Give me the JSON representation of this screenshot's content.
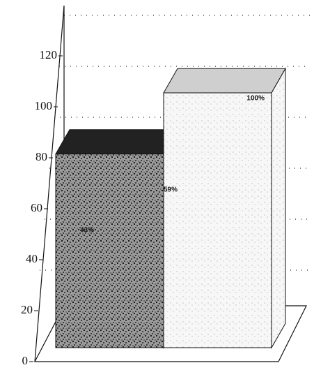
{
  "chart_data": {
    "type": "bar3d",
    "categories": [
      null,
      null
    ],
    "values": [
      76,
      100
    ],
    "value_labels": [
      null,
      "100%"
    ],
    "colors": [
      "#4a4a4a",
      "#ececec"
    ],
    "annotations": [
      "59%",
      "43%"
    ],
    "ylim": [
      0,
      120
    ],
    "yticks": [
      0,
      20,
      40,
      60,
      80,
      100,
      120
    ],
    "grid": true
  }
}
